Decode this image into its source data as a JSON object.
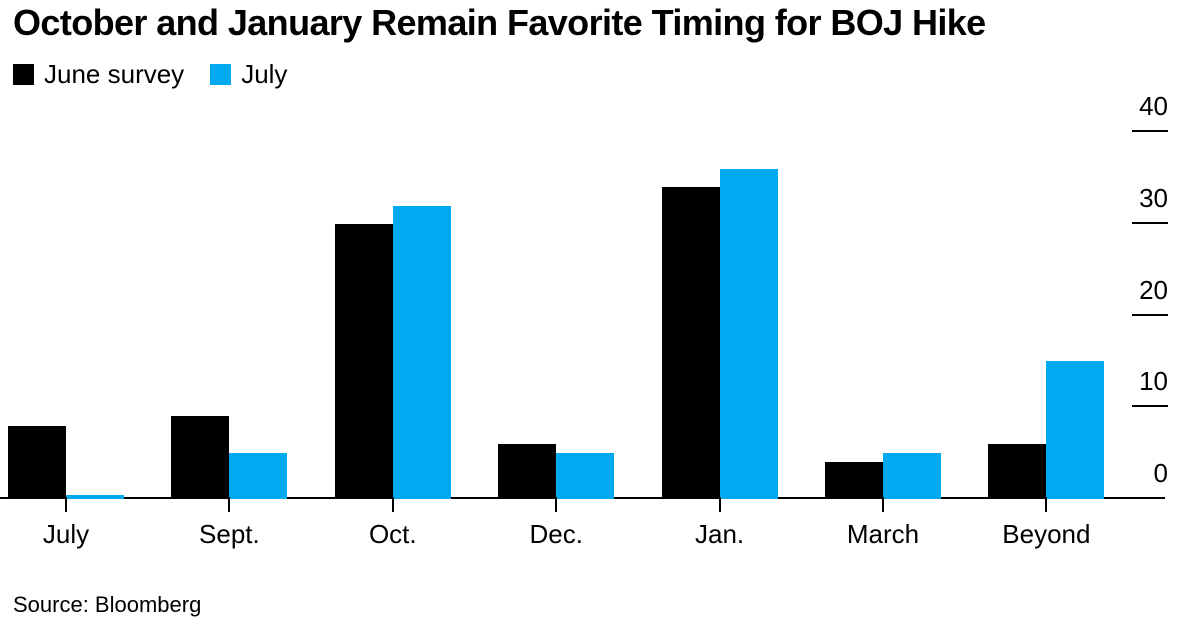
{
  "title": "October and January Remain Favorite Timing for BOJ Hike",
  "source": "Source: Bloomberg",
  "legend": [
    {
      "label": "June survey",
      "color": "#000000"
    },
    {
      "label": "July",
      "color": "#00A9F0"
    }
  ],
  "chart_data": {
    "type": "bar",
    "title": "October and January Remain Favorite Timing for BOJ Hike",
    "categories": [
      "July",
      "Sept.",
      "Oct.",
      "Dec.",
      "Jan.",
      "March",
      "Beyond"
    ],
    "series": [
      {
        "name": "June survey",
        "color": "#000000",
        "values": [
          8,
          9,
          30,
          6,
          34,
          4,
          6
        ]
      },
      {
        "name": "July",
        "color": "#00A9F0",
        "values": [
          0,
          5,
          32,
          5,
          36,
          5,
          15
        ]
      }
    ],
    "xlabel": "",
    "ylabel": "",
    "yticks": [
      0,
      10,
      20,
      30,
      40
    ],
    "ylim": [
      0,
      40
    ],
    "grid": false,
    "y_axis_side": "right",
    "legend_position": "top-left",
    "source": "Source: Bloomberg"
  }
}
